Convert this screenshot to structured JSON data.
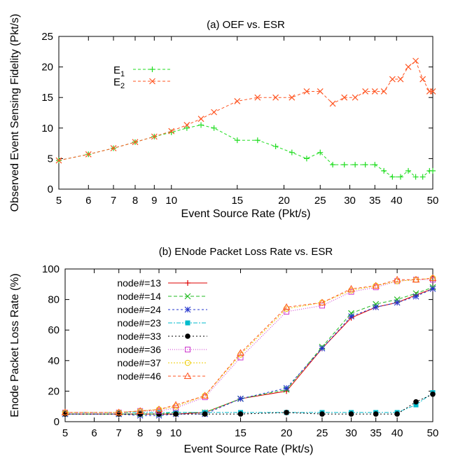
{
  "chart_data": [
    {
      "type": "line",
      "title": "(a) OEF vs. ESR",
      "xlabel": "Event Source Rate (Pkt/s)",
      "ylabel": "Observed Event Sensing Fidelity (Pkt/s)",
      "x_scale": "log",
      "xlim": [
        5,
        50
      ],
      "ylim": [
        0,
        25
      ],
      "xticks": [
        5,
        6,
        7,
        8,
        9,
        10,
        15,
        20,
        25,
        30,
        35,
        40,
        50
      ],
      "yticks": [
        0,
        5,
        10,
        15,
        20,
        25
      ],
      "legend_position": "top-left",
      "series": [
        {
          "name": "E1",
          "label_main": "E",
          "label_sub": "1",
          "color": "#22dd22",
          "marker": "plus",
          "x": [
            5,
            6,
            7,
            8,
            9,
            10,
            11,
            12,
            13,
            15,
            17,
            19,
            21,
            23,
            25,
            27,
            29,
            31,
            33,
            35,
            37,
            39,
            41,
            43,
            45,
            47,
            49,
            50
          ],
          "y": [
            4.7,
            5.7,
            6.7,
            7.7,
            8.6,
            9.3,
            10.0,
            10.5,
            10.0,
            8.0,
            8.0,
            7.0,
            6.0,
            5.0,
            6.0,
            4.0,
            4.0,
            4.0,
            4.0,
            4.0,
            3.0,
            2.0,
            2.0,
            3.0,
            2.0,
            2.0,
            3.0,
            3.0
          ]
        },
        {
          "name": "E2",
          "label_main": "E",
          "label_sub": "2",
          "color": "#ff5522",
          "marker": "cross",
          "x": [
            5,
            6,
            7,
            8,
            9,
            10,
            11,
            12,
            13,
            15,
            17,
            19,
            21,
            23,
            25,
            27,
            29,
            31,
            33,
            35,
            37,
            39,
            41,
            43,
            45,
            47,
            49,
            50
          ],
          "y": [
            4.7,
            5.7,
            6.7,
            7.7,
            8.6,
            9.5,
            10.5,
            11.5,
            12.6,
            14.4,
            15.0,
            15.0,
            15.0,
            16.0,
            16.0,
            14.0,
            15.0,
            15.0,
            16.0,
            16.0,
            16.0,
            18.0,
            18.0,
            20.0,
            21.0,
            18.0,
            16.0,
            16.0
          ]
        }
      ]
    },
    {
      "type": "line",
      "title": "(b) ENode Packet Loss Rate vs. ESR",
      "xlabel": "Event Source Rate (Pkt/s)",
      "ylabel": "Enode Packet Loss Rate (%)",
      "x_scale": "log",
      "xlim": [
        5,
        50
      ],
      "ylim": [
        0,
        100
      ],
      "xticks": [
        5,
        6,
        7,
        8,
        9,
        10,
        15,
        20,
        25,
        30,
        35,
        40,
        50
      ],
      "yticks": [
        0,
        20,
        40,
        60,
        80,
        100
      ],
      "legend_position": "top-left",
      "series": [
        {
          "name": "node#=13",
          "color": "#dd0000",
          "dash": "",
          "marker": "plus",
          "x": [
            5,
            7,
            8,
            9,
            10,
            12,
            15,
            20,
            25,
            30,
            35,
            40,
            45,
            50
          ],
          "y": [
            5,
            5,
            5,
            5,
            5,
            6,
            15,
            20,
            48,
            68,
            75,
            78,
            83,
            87
          ]
        },
        {
          "name": "node#=14",
          "color": "#22bb22",
          "dash": "5,3",
          "marker": "cross",
          "x": [
            5,
            7,
            8,
            9,
            10,
            12,
            15,
            20,
            25,
            30,
            35,
            40,
            45,
            50
          ],
          "y": [
            5,
            5,
            5,
            5,
            6,
            6,
            15,
            21,
            49,
            71,
            77,
            80,
            84,
            88
          ]
        },
        {
          "name": "node#=24",
          "color": "#2233cc",
          "dash": "3,3",
          "marker": "star",
          "x": [
            5,
            7,
            8,
            9,
            10,
            12,
            15,
            20,
            25,
            30,
            35,
            40,
            45,
            50
          ],
          "y": [
            5,
            5,
            4,
            4,
            5,
            5,
            15,
            22,
            48,
            69,
            75,
            78,
            82,
            87
          ]
        },
        {
          "name": "node#=23",
          "color": "#00bbcc",
          "dash": "6,2,2,2",
          "marker": "square-filled",
          "x": [
            5,
            7,
            8,
            9,
            10,
            12,
            15,
            20,
            25,
            30,
            35,
            40,
            45,
            50
          ],
          "y": [
            6,
            6,
            6,
            6,
            6,
            6,
            6,
            6,
            6,
            6,
            6,
            6,
            11,
            19
          ]
        },
        {
          "name": "node#=33",
          "color": "#000000",
          "dash": "2,3",
          "marker": "circle-filled",
          "x": [
            5,
            7,
            8,
            9,
            10,
            12,
            15,
            20,
            25,
            30,
            35,
            40,
            45,
            50
          ],
          "y": [
            5,
            5,
            5,
            5,
            5,
            5,
            5,
            6,
            5,
            5,
            5,
            5,
            13,
            18
          ]
        },
        {
          "name": "node#=36",
          "color": "#cc33cc",
          "dash": "1,2",
          "marker": "square-open",
          "x": [
            5,
            7,
            8,
            9,
            10,
            12,
            15,
            20,
            25,
            30,
            35,
            40,
            45,
            50
          ],
          "y": [
            6,
            6,
            7,
            7,
            9,
            16,
            42,
            72,
            76,
            85,
            88,
            92,
            93,
            93
          ]
        },
        {
          "name": "node#=37",
          "color": "#eecc00",
          "dash": "2,2",
          "marker": "circle-open",
          "x": [
            5,
            7,
            8,
            9,
            10,
            12,
            15,
            20,
            25,
            30,
            35,
            40,
            45,
            50
          ],
          "y": [
            6,
            6,
            7,
            8,
            10,
            17,
            44,
            74,
            78,
            86,
            89,
            92,
            93,
            94
          ]
        },
        {
          "name": "node#=46",
          "color": "#ff5522",
          "dash": "4,3",
          "marker": "triangle-open",
          "x": [
            5,
            7,
            8,
            9,
            10,
            12,
            15,
            20,
            25,
            30,
            35,
            40,
            45,
            50
          ],
          "y": [
            6,
            6,
            7,
            8,
            11,
            17,
            45,
            75,
            78,
            87,
            89,
            93,
            93,
            94
          ]
        }
      ]
    }
  ]
}
